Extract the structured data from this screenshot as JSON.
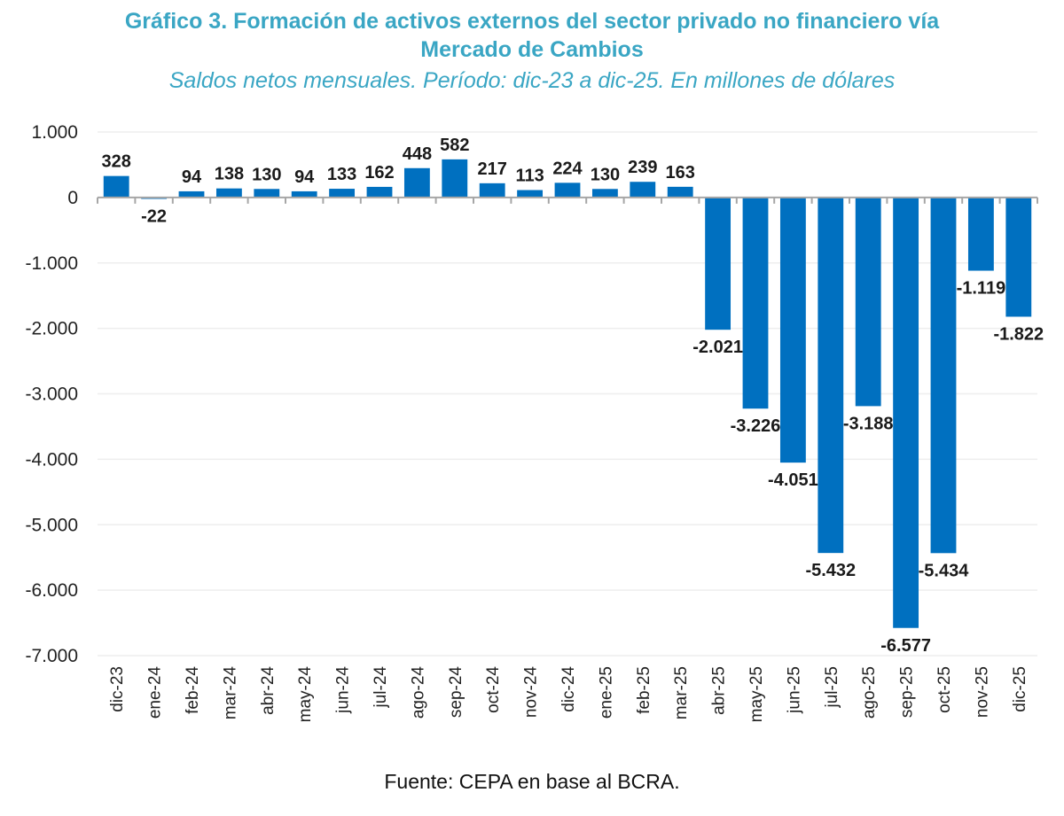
{
  "header": {
    "title_line1": "Gráfico 3. Formación de activos externos del sector privado no financiero vía",
    "title_line2": "Mercado de Cambios",
    "subtitle": "Saldos netos mensuales. Período: dic-23 a dic-25. En millones de dólares"
  },
  "footer": {
    "source": "Fuente: CEPA en base al BCRA."
  },
  "colors": {
    "bar": "#0070c0",
    "title": "#3aa6c4",
    "grid": "#eeeeee",
    "axis": "#a6a6a6"
  },
  "chart_data": {
    "type": "bar",
    "title": "Gráfico 3. Formación de activos externos del sector privado no financiero vía Mercado de Cambios",
    "subtitle": "Saldos netos mensuales. Período: dic-23 a dic-25. En millones de dólares",
    "xlabel": "",
    "ylabel": "",
    "categories": [
      "dic-23",
      "ene-24",
      "feb-24",
      "mar-24",
      "abr-24",
      "may-24",
      "jun-24",
      "jul-24",
      "ago-24",
      "sep-24",
      "oct-24",
      "nov-24",
      "dic-24",
      "ene-25",
      "feb-25",
      "mar-25",
      "abr-25",
      "may-25",
      "jun-25",
      "jul-25",
      "ago-25",
      "sep-25",
      "oct-25",
      "nov-25",
      "dic-25"
    ],
    "values": [
      328,
      -22,
      94,
      138,
      130,
      94,
      133,
      162,
      448,
      582,
      217,
      113,
      224,
      130,
      239,
      163,
      -2021,
      -3226,
      -4051,
      -5432,
      -3188,
      -6577,
      -5434,
      -1119,
      -1822
    ],
    "data_labels": [
      "328",
      "-22",
      "94",
      "138",
      "130",
      "94",
      "133",
      "162",
      "448",
      "582",
      "217",
      "113",
      "224",
      "130",
      "239",
      "163",
      "-2.021",
      "-3.226",
      "-4.051",
      "-5.432",
      "-3.188",
      "-6.577",
      "-5.434",
      "-1.119",
      "-1.822"
    ],
    "ylim": [
      -7000,
      1000
    ],
    "yticks": [
      1000,
      0,
      -1000,
      -2000,
      -3000,
      -4000,
      -5000,
      -6000,
      -7000
    ],
    "ytick_labels": [
      "1.000",
      "0",
      "-1.000",
      "-2.000",
      "-3.000",
      "-4.000",
      "-5.000",
      "-6.000",
      "-7.000"
    ],
    "grid": true,
    "legend": "none"
  }
}
